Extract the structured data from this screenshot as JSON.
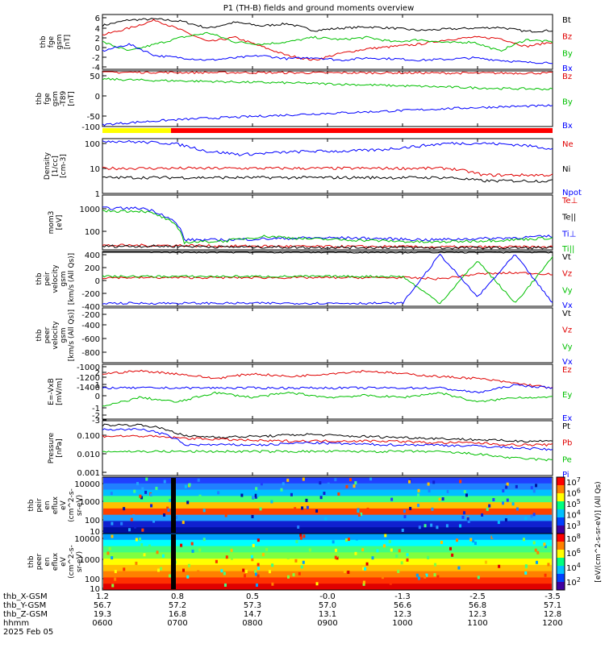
{
  "title": "P1 (TH-B) fields and ground moments overview",
  "colors": {
    "black": "#000000",
    "red": "#e00000",
    "green": "#00c000",
    "blue": "#0000ff"
  },
  "chart_data": [
    {
      "type": "line",
      "ylabel": [
        "thb",
        "fge",
        "gsm",
        "[nT]"
      ],
      "ticks": [
        "6",
        "4",
        "2",
        "0",
        "-2",
        "-4"
      ],
      "ylim": [
        -5,
        7
      ],
      "series": [
        {
          "name": "Bt",
          "color": "#000000",
          "values": [
            4.6,
            5.8,
            6,
            5.5,
            4,
            5.3,
            4.5,
            5,
            3.5,
            4,
            4.3,
            4,
            3.5,
            3.8,
            4,
            4.2,
            3.3,
            3.5
          ]
        },
        {
          "name": "Bz",
          "color": "#e00000",
          "values": [
            2.5,
            4,
            5.8,
            3.5,
            1,
            2,
            0,
            -2,
            -3,
            -1.5,
            -0.5,
            0,
            0.5,
            1.5,
            2,
            1.8,
            0,
            1
          ]
        },
        {
          "name": "By",
          "color": "#00c000",
          "values": [
            1,
            -1,
            0.5,
            2,
            3,
            1,
            0.5,
            1,
            2,
            1.5,
            2,
            1,
            1.5,
            0.8,
            1,
            -1,
            1.5,
            1
          ]
        },
        {
          "name": "Bx",
          "color": "#0000ff",
          "values": [
            -1,
            0.5,
            -2,
            -2.5,
            -3,
            -2.5,
            -2,
            -2.7,
            -2.4,
            -3,
            -2.5,
            -2.7,
            -3,
            -2.8,
            -2.5,
            -3,
            -3.5,
            -3.5
          ]
        }
      ]
    },
    {
      "type": "line",
      "ylabel": [
        "thb",
        "fge",
        "gsm",
        "-T89",
        "[nT]"
      ],
      "ticks": [
        "50",
        "0",
        "-50",
        "-100"
      ],
      "ylim": [
        -125,
        80
      ],
      "series": [
        {
          "name": "Bz",
          "color": "#e00000",
          "values": [
            75,
            75,
            74,
            74,
            73,
            73,
            73,
            72,
            72,
            72
          ]
        },
        {
          "name": "By",
          "color": "#00c000",
          "values": [
            50,
            45,
            42,
            38,
            35,
            30,
            25,
            20,
            15,
            13
          ]
        },
        {
          "name": "Bx",
          "color": "#0000ff",
          "values": [
            -118,
            -105,
            -95,
            -88,
            -80,
            -73,
            -66,
            -58,
            -52,
            -48
          ]
        }
      ]
    },
    {
      "type": "line",
      "yscale": "log",
      "ylabel": [
        "Density",
        "[1/cc]",
        "[cm-3]"
      ],
      "ticks": [
        "100",
        "10",
        "1"
      ],
      "ylim": [
        1,
        120
      ],
      "series": [
        {
          "name": "Ne",
          "color": "#e00000",
          "values": [
            9,
            9,
            9,
            9,
            9,
            9,
            9,
            9,
            9,
            9,
            9,
            5,
            5,
            5
          ]
        },
        {
          "name": "Ni",
          "color": "#000000",
          "values": [
            4,
            4,
            4,
            4,
            4,
            4,
            4,
            4,
            4,
            4,
            4,
            3,
            3,
            3
          ]
        },
        {
          "name": "Npot",
          "color": "#0000ff",
          "values": [
            100,
            90,
            80,
            40,
            30,
            35,
            40,
            40,
            45,
            60,
            80,
            80,
            70,
            50
          ]
        }
      ]
    },
    {
      "type": "line",
      "yscale": "log",
      "ylabel": [
        "mom3",
        "[eV]"
      ],
      "ticks": [
        "1000",
        "100"
      ],
      "ylim": [
        20,
        3000
      ],
      "series": [
        {
          "name": "Te⊥",
          "color": "#e00000",
          "values": [
            30,
            30,
            30,
            28,
            28,
            27,
            27,
            27,
            26,
            26,
            26,
            26
          ]
        },
        {
          "name": "Te||",
          "color": "#000000",
          "values": [
            28,
            28,
            28,
            26,
            26,
            25,
            25,
            25,
            24,
            24,
            24,
            24
          ]
        },
        {
          "name": "Ti⊥",
          "color": "#0000ff",
          "values": [
            900,
            900,
            50,
            50,
            55,
            60,
            60,
            55,
            50,
            55,
            60,
            70
          ]
        },
        {
          "name": "Ti||",
          "color": "#00c000",
          "values": [
            700,
            700,
            40,
            45,
            70,
            55,
            50,
            45,
            40,
            45,
            50,
            60
          ]
        }
      ]
    },
    {
      "type": "line",
      "ylabel": [
        "thb",
        "peir",
        "velocity",
        "gsm",
        "[km/s (All Qs)]"
      ],
      "ticks": [
        "400",
        "200",
        "0",
        "-200",
        "-400"
      ],
      "ylim": [
        -450,
        450
      ],
      "series": [
        {
          "name": "Vt",
          "color": "#000000",
          "values": [
            450,
            450,
            440,
            440,
            440,
            440,
            440,
            440,
            440,
            440,
            440,
            440,
            440
          ]
        },
        {
          "name": "Vz",
          "color": "#e00000",
          "values": [
            20,
            20,
            20,
            20,
            20,
            20,
            20,
            20,
            20,
            0,
            80,
            100,
            80
          ]
        },
        {
          "name": "Vy",
          "color": "#00c000",
          "values": [
            40,
            40,
            40,
            40,
            40,
            40,
            40,
            40,
            40,
            -400,
            300,
            -400,
            350
          ]
        },
        {
          "name": "Vx",
          "color": "#0000ff",
          "values": [
            -400,
            -400,
            -400,
            -400,
            -400,
            -400,
            -400,
            -400,
            -400,
            400,
            -300,
            400,
            -400
          ]
        }
      ]
    },
    {
      "type": "line",
      "ylabel": [
        "thb",
        "peer",
        "velocity",
        "gsm",
        "[km/s (All Qs)]"
      ],
      "ticks": [
        "-200",
        "-400",
        "-600",
        "-800",
        "-1000",
        "-1200",
        "-1400"
      ],
      "ylim": [
        -1450,
        -150
      ],
      "series": [
        {
          "name": "Vt",
          "color": "#000000",
          "values": []
        },
        {
          "name": "Vz",
          "color": "#e00000",
          "values": []
        },
        {
          "name": "Vy",
          "color": "#00c000",
          "values": []
        },
        {
          "name": "Vx",
          "color": "#0000ff",
          "values": []
        }
      ]
    },
    {
      "type": "line",
      "ylabel": [
        "E=-VxB",
        "[mV/m]"
      ],
      "ticks": [
        "2",
        "1",
        "0",
        "-1",
        "-2",
        "-3"
      ],
      "ylim": [
        -3.3,
        2.5
      ],
      "series": [
        {
          "name": "Ez",
          "color": "#e00000",
          "values": [
            1.5,
            1.8,
            1.5,
            1,
            1.5,
            1.2,
            1.5,
            1.8,
            1.5,
            1.2,
            1,
            0.5,
            0
          ]
        },
        {
          "name": "Ey",
          "color": "#00c000",
          "values": [
            -2,
            -1,
            -1.5,
            -0.5,
            -1,
            -0.5,
            -1,
            -0.8,
            -1,
            -0.5,
            -1.5,
            -1,
            -1
          ]
        },
        {
          "name": "Ex",
          "color": "#0000ff",
          "values": [
            0,
            0,
            0,
            0,
            0,
            0,
            0,
            0,
            0,
            0,
            -0.5,
            0.3,
            0
          ]
        }
      ]
    },
    {
      "type": "line",
      "yscale": "log",
      "ylabel": [
        "Pressure",
        "[nPa]"
      ],
      "ticks": [
        "0.100",
        "0.010",
        "0.001"
      ],
      "ylim": [
        0.0008,
        0.25
      ],
      "series": [
        {
          "name": "Pt",
          "color": "#000000",
          "values": [
            0.16,
            0.16,
            0.05,
            0.045,
            0.05,
            0.06,
            0.05,
            0.045,
            0.04,
            0.035,
            0.03,
            0.03
          ]
        },
        {
          "name": "Pb",
          "color": "#e00000",
          "values": [
            0.05,
            0.05,
            0.04,
            0.035,
            0.03,
            0.03,
            0.03,
            0.03,
            0.025,
            0.025,
            0.02,
            0.02
          ]
        },
        {
          "name": "Pe",
          "color": "#00c000",
          "values": [
            0.01,
            0.01,
            0.01,
            0.01,
            0.01,
            0.01,
            0.01,
            0.01,
            0.01,
            0.008,
            0.005,
            0.004
          ]
        },
        {
          "name": "Pi",
          "color": "#0000ff",
          "values": [
            0.1,
            0.1,
            0.02,
            0.02,
            0.02,
            0.025,
            0.022,
            0.02,
            0.02,
            0.018,
            0.015,
            0.012
          ]
        }
      ]
    },
    {
      "type": "heatmap",
      "ylabel": [
        "thb",
        "peir",
        "en",
        "eflux",
        "eV",
        "(cm^2-s-",
        "sr-eV)"
      ],
      "ticks": [
        "10000",
        "1000",
        "100",
        "10"
      ],
      "colorbar_ticks": [
        "10^7",
        "10^6",
        "10^5",
        "10^4",
        "10^3"
      ],
      "colorbar_label": "[eV/(cm^2-s-sr-eV)] (All Qs)"
    },
    {
      "type": "heatmap",
      "ylabel": [
        "thb",
        "peer",
        "en",
        "eflux",
        "eV",
        "(cm^2-s-",
        "sr-eV)"
      ],
      "ticks": [
        "10000",
        "1000",
        "100",
        "10"
      ],
      "colorbar_ticks": [
        "10^8",
        "10^6",
        "10^4",
        "10^2"
      ],
      "colorbar_label": "[eV/(cm^2-s-sr-eV)] (All Qs)"
    }
  ],
  "footer": {
    "labels": [
      "thb_X-GSM",
      "thb_Y-GSM",
      "thb_Z-GSM",
      "hhmm",
      "2025 Feb 05"
    ],
    "columns": [
      [
        "1.2",
        "56.7",
        "19.3",
        "0600"
      ],
      [
        "0.8",
        "57.2",
        "16.8",
        "0700"
      ],
      [
        "0.5",
        "57.3",
        "14.7",
        "0800"
      ],
      [
        "-0.0",
        "57.0",
        "13.1",
        "0900"
      ],
      [
        "-1.3",
        "56.6",
        "12.3",
        "1000"
      ],
      [
        "-2.5",
        "56.8",
        "12.3",
        "1100"
      ],
      [
        "-3.5",
        "57.1",
        "12.8",
        "1200"
      ]
    ]
  },
  "mode_bar": {
    "segments": [
      "#ffff00",
      "#ff0000"
    ]
  }
}
